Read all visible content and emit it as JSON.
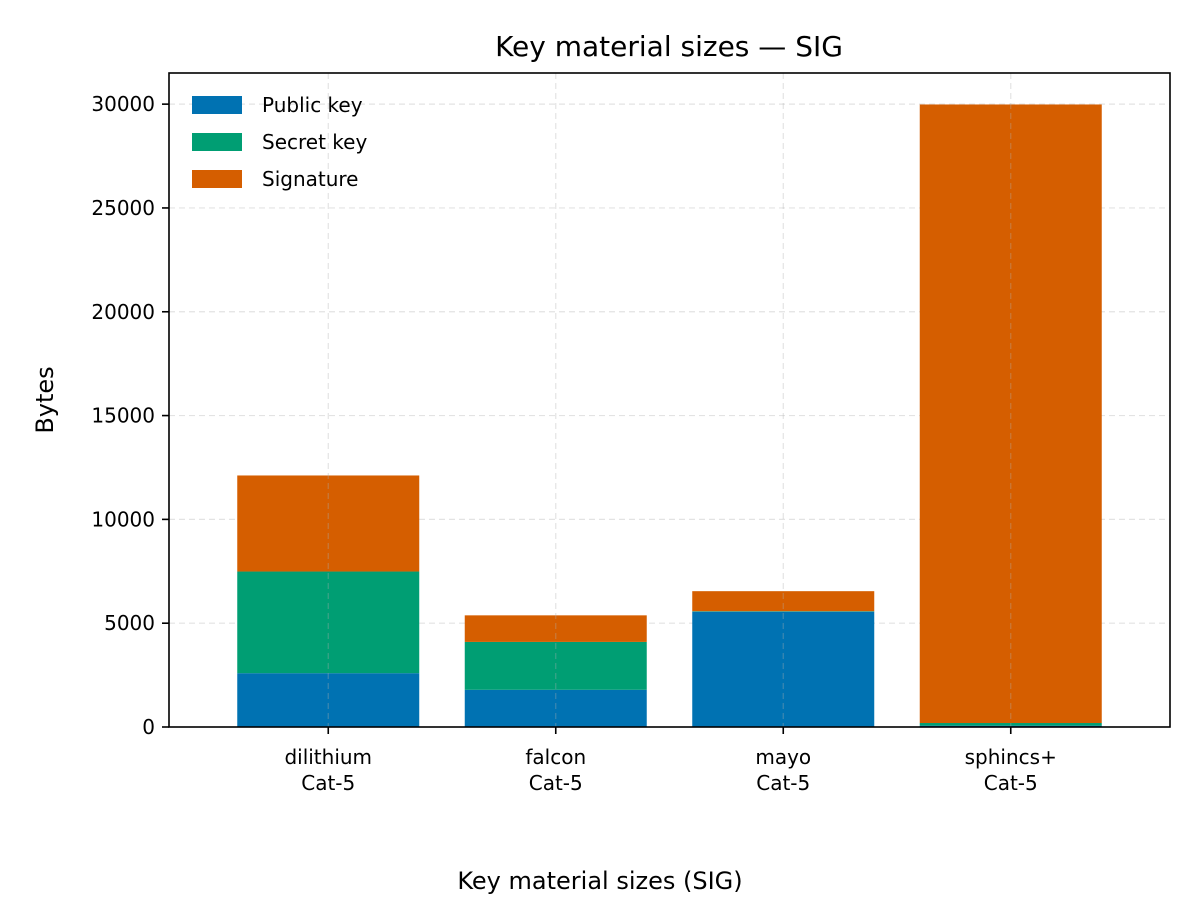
{
  "chart_data": {
    "type": "bar",
    "stacked": true,
    "title": "Key material sizes — SIG",
    "xlabel": "",
    "ylabel": "Bytes",
    "caption": "Key material sizes (SIG)",
    "categories": [
      [
        "dilithium",
        "Cat-5"
      ],
      [
        "falcon",
        "Cat-5"
      ],
      [
        "mayo",
        "Cat-5"
      ],
      [
        "sphincs+",
        "Cat-5"
      ]
    ],
    "series": [
      {
        "name": "Public key",
        "color": "#0072b2",
        "values": [
          2592,
          1793,
          5554,
          64
        ]
      },
      {
        "name": "Secret key",
        "color": "#009e73",
        "values": [
          4896,
          2305,
          24,
          128
        ]
      },
      {
        "name": "Signature",
        "color": "#d55e00",
        "values": [
          4627,
          1280,
          964,
          29792
        ]
      }
    ],
    "ylim": [
      0,
      31500
    ],
    "yticks": [
      0,
      5000,
      10000,
      15000,
      20000,
      25000,
      30000
    ],
    "grid": true,
    "legend_position": "top-left"
  }
}
